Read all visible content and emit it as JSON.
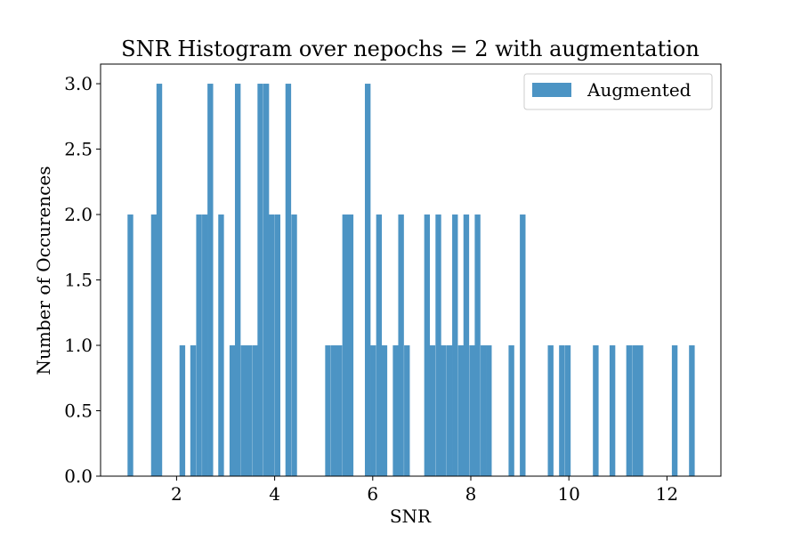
{
  "chart_data": {
    "type": "bar",
    "title": "SNR Histogram over nepochs = 2 with augmentation",
    "xlabel": "SNR",
    "ylabel": "Number of Occurences",
    "xlim": [
      0.45,
      13.1
    ],
    "ylim": [
      0,
      3.15
    ],
    "x_ticks": [
      2,
      4,
      6,
      8,
      10,
      12
    ],
    "x_tick_labels": [
      "2",
      "4",
      "6",
      "8",
      "10",
      "12"
    ],
    "y_ticks": [
      0,
      0.5,
      1,
      1.5,
      2,
      2.5,
      3
    ],
    "y_tick_labels": [
      "0.0",
      "0.5",
      "1.0",
      "1.5",
      "2.0",
      "2.5",
      "3.0"
    ],
    "bar_color": "#4c94c4",
    "legend": {
      "position": "upper right",
      "label": "Augmented"
    },
    "grid": false,
    "series": [
      {
        "name": "Augmented",
        "bin_width": 0.116,
        "bin_starts": [
          1.0,
          1.48,
          1.59,
          2.06,
          2.28,
          2.4,
          2.52,
          2.63,
          2.85,
          3.08,
          3.19,
          3.31,
          3.42,
          3.54,
          3.65,
          3.77,
          3.88,
          4.0,
          4.22,
          4.34,
          5.03,
          5.15,
          5.26,
          5.38,
          5.49,
          5.84,
          5.95,
          6.07,
          6.18,
          6.41,
          6.52,
          6.64,
          7.05,
          7.16,
          7.28,
          7.39,
          7.51,
          7.62,
          7.74,
          7.85,
          7.97,
          8.08,
          8.2,
          8.31,
          8.77,
          9.0,
          9.57,
          9.8,
          9.92,
          10.49,
          10.83,
          11.17,
          11.29,
          11.4,
          12.1,
          12.45
        ],
        "counts": [
          2,
          2,
          3,
          1,
          1,
          2,
          2,
          3,
          2,
          1,
          3,
          1,
          1,
          1,
          3,
          3,
          2,
          2,
          3,
          2,
          1,
          1,
          1,
          2,
          2,
          3,
          1,
          2,
          1,
          1,
          2,
          1,
          2,
          1,
          2,
          1,
          1,
          2,
          1,
          2,
          1,
          2,
          1,
          1,
          1,
          2,
          1,
          1,
          1,
          1,
          1,
          1,
          1,
          1,
          1,
          1
        ]
      }
    ]
  }
}
